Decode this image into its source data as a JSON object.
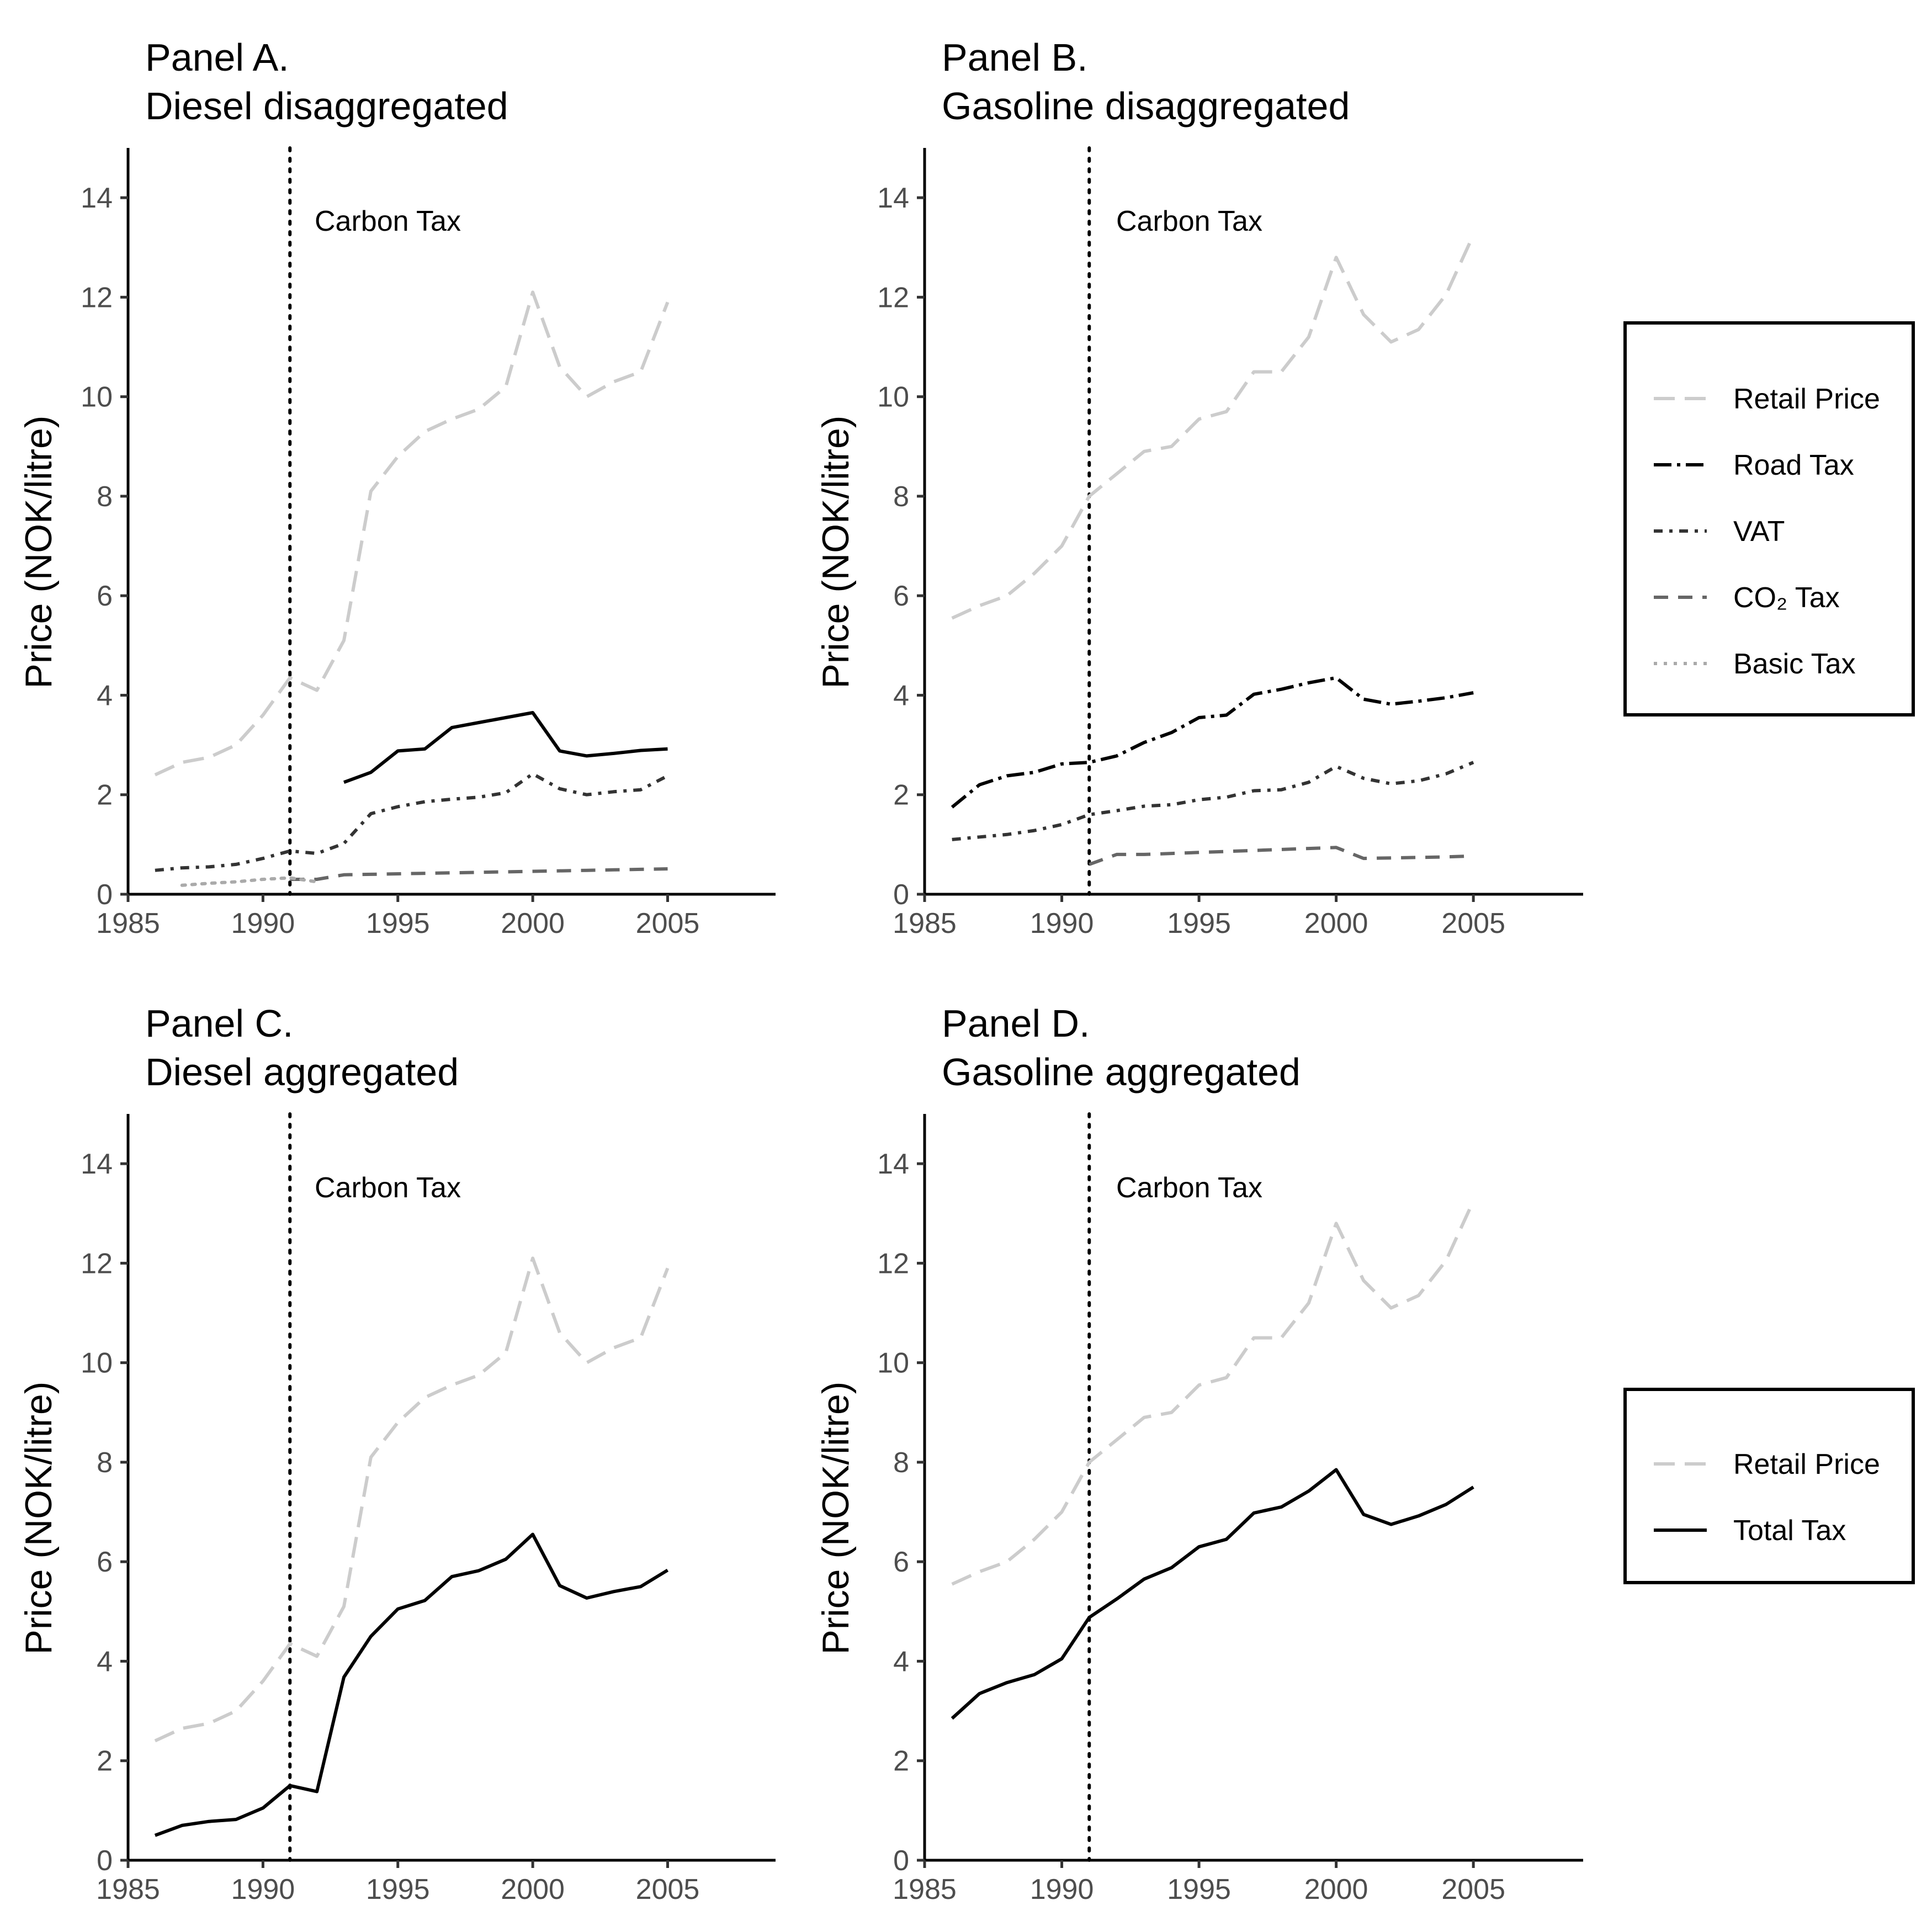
{
  "figure": {
    "panels": [
      {
        "title_line1": "Panel A.",
        "title_line2": "Diesel disaggregated",
        "ylabel": "Price (NOK/litre)",
        "annotation": "Carbon Tax"
      },
      {
        "title_line1": "Panel B.",
        "title_line2": "Gasoline disaggregated",
        "ylabel": "Price (NOK/litre)",
        "annotation": "Carbon Tax"
      },
      {
        "title_line1": "Panel C.",
        "title_line2": "Diesel aggregated",
        "ylabel": "Price (NOK/litre)",
        "annotation": "Carbon Tax"
      },
      {
        "title_line1": "Panel D.",
        "title_line2": "Gasoline aggregated",
        "ylabel": "Price (NOK/litre)",
        "annotation": "Carbon Tax"
      }
    ],
    "legend_top": [
      "Retail Price",
      "Road Tax",
      "VAT",
      "CO₂ Tax",
      "Basic Tax"
    ],
    "legend_bottom": [
      "Retail Price",
      "Total Tax"
    ]
  },
  "chart_data": [
    {
      "type": "line",
      "title": "Panel A.\nDiesel disaggregated",
      "xlabel": "",
      "ylabel": "Price (NOK/litre)",
      "xlim": [
        1985,
        2009
      ],
      "ylim": [
        0,
        15
      ],
      "xticks": [
        1985,
        1990,
        1995,
        2000,
        2005
      ],
      "yticks": [
        0,
        2,
        4,
        6,
        8,
        10,
        12,
        14
      ],
      "grid": false,
      "vline": {
        "x": 1991,
        "label": "Carbon Tax"
      },
      "series": [
        {
          "name": "Retail Price",
          "style": "longdash",
          "color": "#cccccc",
          "x": [
            1986,
            1987,
            1988,
            1989,
            1990,
            1991,
            1992,
            1993,
            1994,
            1995,
            1996,
            1997,
            1998,
            1999,
            2000,
            2001,
            2002,
            2003,
            2004,
            2005
          ],
          "y": [
            2.4,
            2.65,
            2.75,
            3.0,
            3.6,
            4.35,
            4.1,
            5.1,
            8.1,
            8.8,
            9.3,
            9.55,
            9.75,
            10.2,
            12.1,
            10.6,
            10.0,
            10.3,
            10.5,
            11.9
          ]
        },
        {
          "name": "Road Tax",
          "style": "solid",
          "color": "#000000",
          "x": [
            1993,
            1994,
            1995,
            1996,
            1997,
            1998,
            1999,
            2000,
            2001,
            2002,
            2003,
            2004,
            2005
          ],
          "y": [
            2.25,
            2.45,
            2.88,
            2.92,
            3.35,
            3.45,
            3.55,
            3.65,
            2.88,
            2.78,
            2.83,
            2.89,
            2.92
          ]
        },
        {
          "name": "VAT",
          "style": "dotdash",
          "color": "#333333",
          "x": [
            1986,
            1987,
            1988,
            1989,
            1990,
            1991,
            1992,
            1993,
            1994,
            1995,
            1996,
            1997,
            1998,
            1999,
            2000,
            2001,
            2002,
            2003,
            2004,
            2005
          ],
          "y": [
            0.48,
            0.53,
            0.55,
            0.6,
            0.72,
            0.87,
            0.82,
            1.02,
            1.62,
            1.76,
            1.86,
            1.91,
            1.95,
            2.04,
            2.42,
            2.12,
            2.0,
            2.06,
            2.1,
            2.38
          ]
        },
        {
          "name": "CO₂ Tax",
          "style": "dashed",
          "color": "#666666",
          "x": [
            1991,
            1992,
            1993,
            1994,
            1995,
            1996,
            1997,
            1998,
            1999,
            2000,
            2001,
            2002,
            2003,
            2004,
            2005
          ],
          "y": [
            0.3,
            0.3,
            0.39,
            0.4,
            0.41,
            0.42,
            0.43,
            0.44,
            0.45,
            0.46,
            0.47,
            0.48,
            0.49,
            0.5,
            0.51
          ]
        },
        {
          "name": "Basic Tax",
          "style": "dotted",
          "color": "#aaaaaa",
          "x": [
            1987,
            1988,
            1989,
            1990,
            1991,
            1992
          ],
          "y": [
            0.18,
            0.22,
            0.25,
            0.3,
            0.33,
            0.25
          ]
        }
      ]
    },
    {
      "type": "line",
      "title": "Panel B.\nGasoline disaggregated",
      "xlabel": "",
      "ylabel": "Price (NOK/litre)",
      "xlim": [
        1985,
        2009
      ],
      "ylim": [
        0,
        15
      ],
      "xticks": [
        1985,
        1990,
        1995,
        2000,
        2005
      ],
      "yticks": [
        0,
        2,
        4,
        6,
        8,
        10,
        12,
        14
      ],
      "grid": false,
      "vline": {
        "x": 1991,
        "label": "Carbon Tax"
      },
      "series": [
        {
          "name": "Retail Price",
          "style": "longdash",
          "color": "#cccccc",
          "x": [
            1986,
            1987,
            1988,
            1989,
            1990,
            1991,
            1992,
            1993,
            1994,
            1995,
            1996,
            1997,
            1998,
            1999,
            2000,
            2001,
            2002,
            2003,
            2004,
            2005
          ],
          "y": [
            5.55,
            5.8,
            6.0,
            6.45,
            7.0,
            8.0,
            8.45,
            8.9,
            9.0,
            9.55,
            9.7,
            10.5,
            10.5,
            11.2,
            12.8,
            11.65,
            11.1,
            11.35,
            12.05,
            13.25
          ]
        },
        {
          "name": "Road Tax",
          "style": "longdash-dot",
          "color": "#000000",
          "x": [
            1986,
            1987,
            1988,
            1989,
            1990,
            1991,
            1992,
            1993,
            1994,
            1995,
            1996,
            1997,
            1998,
            1999,
            2000,
            2001,
            2002,
            2003,
            2004,
            2005
          ],
          "y": [
            1.75,
            2.2,
            2.38,
            2.45,
            2.62,
            2.65,
            2.78,
            3.05,
            3.25,
            3.55,
            3.6,
            4.02,
            4.12,
            4.25,
            4.35,
            3.92,
            3.82,
            3.88,
            3.95,
            4.05
          ]
        },
        {
          "name": "VAT",
          "style": "dotdash",
          "color": "#333333",
          "x": [
            1986,
            1987,
            1988,
            1989,
            1990,
            1991,
            1992,
            1993,
            1994,
            1995,
            1996,
            1997,
            1998,
            1999,
            2000,
            2001,
            2002,
            2003,
            2004,
            2005
          ],
          "y": [
            1.1,
            1.15,
            1.2,
            1.28,
            1.4,
            1.6,
            1.68,
            1.77,
            1.8,
            1.9,
            1.95,
            2.08,
            2.1,
            2.25,
            2.57,
            2.33,
            2.22,
            2.28,
            2.42,
            2.65
          ]
        },
        {
          "name": "CO₂ Tax",
          "style": "dashed",
          "color": "#666666",
          "x": [
            1991,
            1992,
            1993,
            1994,
            1995,
            1996,
            1997,
            1998,
            1999,
            2000,
            2001,
            2002,
            2003,
            2004,
            2005
          ],
          "y": [
            0.6,
            0.8,
            0.8,
            0.82,
            0.84,
            0.86,
            0.88,
            0.9,
            0.92,
            0.94,
            0.72,
            0.73,
            0.74,
            0.75,
            0.77
          ]
        }
      ]
    },
    {
      "type": "line",
      "title": "Panel C.\nDiesel aggregated",
      "xlabel": "",
      "ylabel": "Price (NOK/litre)",
      "xlim": [
        1985,
        2009
      ],
      "ylim": [
        0,
        15
      ],
      "xticks": [
        1985,
        1990,
        1995,
        2000,
        2005
      ],
      "yticks": [
        0,
        2,
        4,
        6,
        8,
        10,
        12,
        14
      ],
      "grid": false,
      "vline": {
        "x": 1991,
        "label": "Carbon Tax"
      },
      "series": [
        {
          "name": "Retail Price",
          "style": "longdash",
          "color": "#cccccc",
          "x": [
            1986,
            1987,
            1988,
            1989,
            1990,
            1991,
            1992,
            1993,
            1994,
            1995,
            1996,
            1997,
            1998,
            1999,
            2000,
            2001,
            2002,
            2003,
            2004,
            2005
          ],
          "y": [
            2.4,
            2.65,
            2.75,
            3.0,
            3.6,
            4.35,
            4.1,
            5.1,
            8.1,
            8.8,
            9.3,
            9.55,
            9.75,
            10.2,
            12.1,
            10.6,
            10.0,
            10.3,
            10.5,
            11.9
          ]
        },
        {
          "name": "Total Tax",
          "style": "solid",
          "color": "#000000",
          "x": [
            1986,
            1987,
            1988,
            1989,
            1990,
            1991,
            1992,
            1993,
            1994,
            1995,
            1996,
            1997,
            1998,
            1999,
            2000,
            2001,
            2002,
            2003,
            2004,
            2005
          ],
          "y": [
            0.5,
            0.7,
            0.78,
            0.82,
            1.05,
            1.5,
            1.38,
            3.68,
            4.5,
            5.05,
            5.22,
            5.7,
            5.82,
            6.05,
            6.55,
            5.52,
            5.27,
            5.4,
            5.5,
            5.83
          ]
        }
      ]
    },
    {
      "type": "line",
      "title": "Panel D.\nGasoline aggregated",
      "xlabel": "",
      "ylabel": "Price (NOK/litre)",
      "xlim": [
        1985,
        2009
      ],
      "ylim": [
        0,
        15
      ],
      "xticks": [
        1985,
        1990,
        1995,
        2000,
        2005
      ],
      "yticks": [
        0,
        2,
        4,
        6,
        8,
        10,
        12,
        14
      ],
      "grid": false,
      "vline": {
        "x": 1991,
        "label": "Carbon Tax"
      },
      "series": [
        {
          "name": "Retail Price",
          "style": "longdash",
          "color": "#cccccc",
          "x": [
            1986,
            1987,
            1988,
            1989,
            1990,
            1991,
            1992,
            1993,
            1994,
            1995,
            1996,
            1997,
            1998,
            1999,
            2000,
            2001,
            2002,
            2003,
            2004,
            2005
          ],
          "y": [
            5.55,
            5.8,
            6.0,
            6.45,
            7.0,
            8.0,
            8.45,
            8.9,
            9.0,
            9.55,
            9.7,
            10.5,
            10.5,
            11.2,
            12.8,
            11.65,
            11.1,
            11.35,
            12.05,
            13.25
          ]
        },
        {
          "name": "Total Tax",
          "style": "solid",
          "color": "#000000",
          "x": [
            1986,
            1987,
            1988,
            1989,
            1990,
            1991,
            1992,
            1993,
            1994,
            1995,
            1996,
            1997,
            1998,
            1999,
            2000,
            2001,
            2002,
            2003,
            2004,
            2005
          ],
          "y": [
            2.85,
            3.35,
            3.57,
            3.73,
            4.05,
            4.88,
            5.25,
            5.65,
            5.88,
            6.3,
            6.45,
            6.98,
            7.1,
            7.42,
            7.85,
            6.95,
            6.75,
            6.92,
            7.15,
            7.5
          ]
        }
      ]
    }
  ]
}
